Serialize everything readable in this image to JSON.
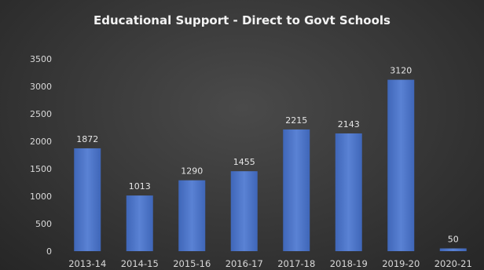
{
  "chart_data": {
    "type": "bar",
    "title": "Educational Support - Direct to Govt Schools",
    "categories": [
      "2013-14",
      "2014-15",
      "2015-16",
      "2016-17",
      "2017-18",
      "2018-19",
      "2019-20",
      "2020-21"
    ],
    "values": [
      1872,
      1013,
      1290,
      1455,
      2215,
      2143,
      3120,
      50
    ],
    "data_labels": [
      "1872",
      "1013",
      "1290",
      "1455",
      "2215",
      "2143",
      "3120",
      "50"
    ],
    "yticks": [
      "0",
      "500",
      "1000",
      "1500",
      "2000",
      "2500",
      "3000",
      "3500"
    ],
    "ylim": [
      0,
      3500
    ],
    "xlabel": "",
    "ylabel": "",
    "grid": false,
    "legend": "none",
    "colors": {
      "bar": "#4a72c4",
      "bar_light": "#5f86d6",
      "text": "#d9d9d9",
      "background": "#3a3a3a"
    }
  }
}
